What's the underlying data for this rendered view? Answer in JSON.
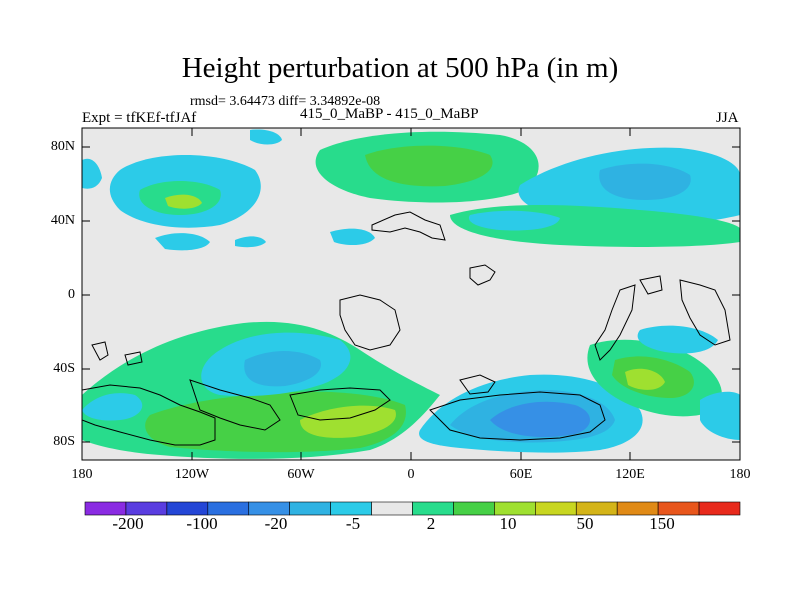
{
  "title": "Height perturbation at 500 hPa (in m)",
  "stats": "rmsd= 3.64473 diff= 3.34892e-08",
  "experiment_label": "Expt = tfKEf-tfJAf",
  "center_label": "415_0_MaBP - 415_0_MaBP",
  "season": "JJA",
  "map": {
    "projection": "cylindrical-equidistant",
    "lon_range": [
      -180,
      180
    ],
    "lat_range": [
      -90,
      90
    ],
    "lat_ticks": [
      "80N",
      "40N",
      "0",
      "40S",
      "80S"
    ],
    "lon_ticks": [
      "180",
      "120W",
      "60W",
      "0",
      "60E",
      "120E",
      "180"
    ]
  },
  "colorbar": {
    "tick_labels": [
      "-200",
      "-100",
      "-20",
      "-5",
      "2",
      "10",
      "50",
      "150"
    ],
    "colors": [
      "#8a2be2",
      "#5a3de0",
      "#2446d6",
      "#2a6fe0",
      "#3690e6",
      "#2fb2e2",
      "#2ccbe8",
      "#e8e8e8",
      "#28dc8c",
      "#46d046",
      "#9fe030",
      "#c8d620",
      "#d4b418",
      "#e08a16",
      "#e8561c",
      "#e82a1c"
    ]
  },
  "palette": {
    "neutral": "#e8e8e8",
    "green_light": "#28dc8c",
    "green": "#46d046",
    "yellow_green": "#9fe030",
    "cyan": "#2ccbe8",
    "light_blue": "#2fb2e2",
    "mid_blue": "#3690e6",
    "blue": "#2a6fe0"
  }
}
